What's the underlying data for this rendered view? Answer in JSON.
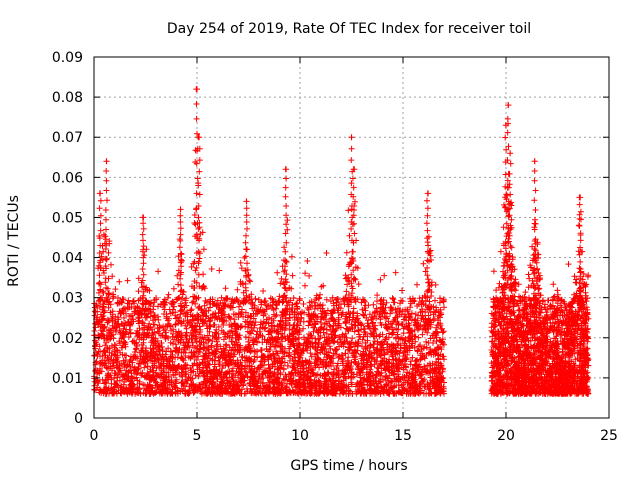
{
  "chart_data": {
    "type": "scatter",
    "title": "Day 254 of 2019, Rate Of TEC Index for receiver toil",
    "xlabel": "GPS time / hours",
    "ylabel": "ROTI / TECUs",
    "xlim": [
      0,
      25
    ],
    "ylim": [
      0,
      0.09
    ],
    "x_ticks": [
      0,
      5,
      10,
      15,
      20,
      25
    ],
    "x_tick_labels": [
      "0",
      "5",
      "10",
      "15",
      "20",
      "25"
    ],
    "y_ticks": [
      0,
      0.01,
      0.02,
      0.03,
      0.04,
      0.05,
      0.06,
      0.07,
      0.08,
      0.09
    ],
    "y_tick_labels": [
      "0",
      "0.01",
      "0.02",
      "0.03",
      "0.04",
      "0.05",
      "0.06",
      "0.07",
      "0.08",
      "0.09"
    ],
    "grid": true,
    "marker": "+",
    "color": "#ff0000",
    "series": [
      {
        "name": "ROTI",
        "segments": [
          {
            "x_range": [
              0.0,
              17.0
            ],
            "typical_range": [
              0.006,
              0.03
            ]
          },
          {
            "x_range": [
              19.3,
              24.0
            ],
            "typical_range": [
              0.006,
              0.03
            ]
          }
        ],
        "gap": [
          17.0,
          19.3
        ],
        "peaks": [
          {
            "x": 0.3,
            "y": 0.056
          },
          {
            "x": 0.6,
            "y": 0.064
          },
          {
            "x": 2.4,
            "y": 0.05
          },
          {
            "x": 4.2,
            "y": 0.052
          },
          {
            "x": 5.0,
            "y": 0.082
          },
          {
            "x": 5.1,
            "y": 0.07
          },
          {
            "x": 7.4,
            "y": 0.054
          },
          {
            "x": 9.3,
            "y": 0.062
          },
          {
            "x": 12.5,
            "y": 0.07
          },
          {
            "x": 12.6,
            "y": 0.062
          },
          {
            "x": 16.2,
            "y": 0.056
          },
          {
            "x": 20.1,
            "y": 0.078
          },
          {
            "x": 20.0,
            "y": 0.073
          },
          {
            "x": 20.2,
            "y": 0.066
          },
          {
            "x": 21.4,
            "y": 0.064
          },
          {
            "x": 23.6,
            "y": 0.055
          }
        ]
      }
    ]
  }
}
